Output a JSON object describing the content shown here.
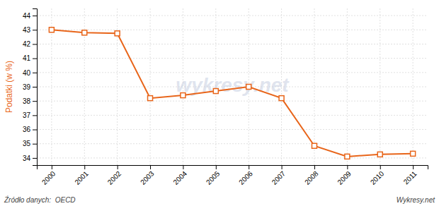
{
  "chart_data": {
    "type": "line",
    "x": [
      2000,
      2001,
      2002,
      2003,
      2004,
      2005,
      2006,
      2007,
      2008,
      2009,
      2010,
      2011
    ],
    "values": [
      43.0,
      42.8,
      42.75,
      38.2,
      38.4,
      38.7,
      39.0,
      38.2,
      34.85,
      34.1,
      34.25,
      34.3
    ],
    "color": "#E8651A",
    "marker": "square",
    "ylabel": "Podatki (w %)",
    "xlim": [
      1999.55,
      2011.45
    ],
    "xticks": [
      2000,
      2001,
      2002,
      2003,
      2004,
      2005,
      2006,
      2007,
      2008,
      2009,
      2010,
      2011
    ],
    "ylim": [
      33.5,
      44.5
    ],
    "yticks": [
      34,
      35,
      36,
      37,
      38,
      39,
      40,
      41,
      42,
      43,
      44
    ],
    "grid": true,
    "annotations": [
      "wykresy.net",
      "Źródło danych:  OECD",
      "Wykresy.net"
    ]
  }
}
